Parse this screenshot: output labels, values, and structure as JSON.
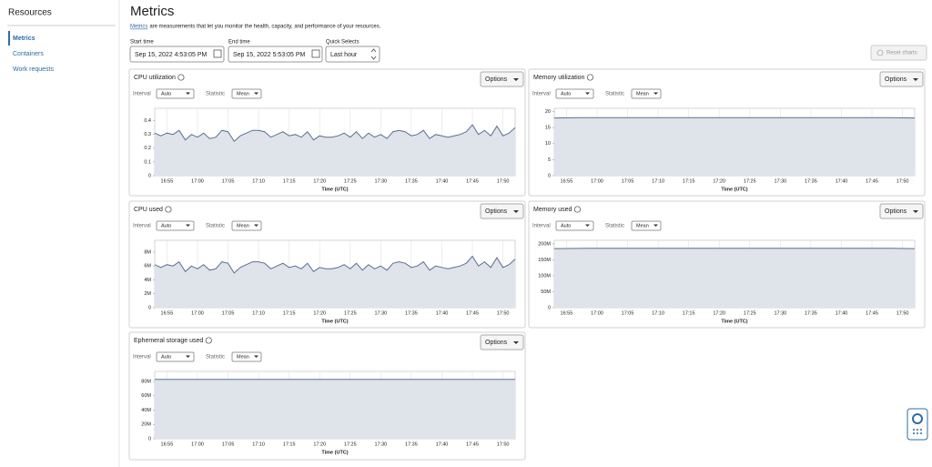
{
  "sidebar": {
    "title": "Resources",
    "items": [
      "Metrics",
      "Containers",
      "Work requests"
    ]
  },
  "header": {
    "title": "Metrics",
    "description_link": "Metrics",
    "description": "are measurements that let you monitor the health, capacity, and performance of your resources."
  },
  "filters": {
    "start_label": "Start time",
    "start_value": "Sep 15, 2022 4:53:05 PM",
    "end_label": "End time",
    "end_value": "Sep 15, 2022 5:53:05 PM",
    "quick_label": "Quick Selects",
    "quick_value": "Last hour",
    "reset": "Reset charts"
  },
  "panel_controls": {
    "interval_label": "Interval",
    "statistic_label": "Statistic",
    "options": "Options"
  },
  "chart_data": [
    {
      "type": "line",
      "title": "CPU utilization",
      "interval": "Auto",
      "statistic": "Mean",
      "x_label": "Time (UTC)",
      "color": "#5b6f93",
      "fill_color": "#dfe3ea",
      "xgrid": true,
      "x": [
        "16:53",
        "16:54",
        "16:55",
        "16:56",
        "16:57",
        "16:58",
        "16:59",
        "17:00",
        "17:01",
        "17:02",
        "17:03",
        "17:04",
        "17:05",
        "17:06",
        "17:07",
        "17:08",
        "17:09",
        "17:10",
        "17:11",
        "17:12",
        "17:13",
        "17:14",
        "17:15",
        "17:16",
        "17:17",
        "17:18",
        "17:19",
        "17:20",
        "17:21",
        "17:22",
        "17:23",
        "17:24",
        "17:25",
        "17:26",
        "17:27",
        "17:28",
        "17:29",
        "17:30",
        "17:31",
        "17:32",
        "17:33",
        "17:34",
        "17:35",
        "17:36",
        "17:37",
        "17:38",
        "17:39",
        "17:40",
        "17:41",
        "17:42",
        "17:43",
        "17:44",
        "17:45",
        "17:46",
        "17:47",
        "17:48",
        "17:49",
        "17:50",
        "17:51",
        "17:52"
      ],
      "values": [
        0.31,
        0.29,
        0.31,
        0.3,
        0.33,
        0.26,
        0.3,
        0.28,
        0.31,
        0.27,
        0.28,
        0.33,
        0.32,
        0.25,
        0.29,
        0.31,
        0.33,
        0.33,
        0.32,
        0.28,
        0.3,
        0.32,
        0.29,
        0.3,
        0.28,
        0.32,
        0.26,
        0.29,
        0.28,
        0.28,
        0.29,
        0.31,
        0.28,
        0.32,
        0.27,
        0.31,
        0.28,
        0.3,
        0.27,
        0.32,
        0.33,
        0.32,
        0.29,
        0.3,
        0.33,
        0.27,
        0.3,
        0.29,
        0.28,
        0.29,
        0.3,
        0.32,
        0.37,
        0.3,
        0.33,
        0.29,
        0.36,
        0.29,
        0.31,
        0.35
      ],
      "xlim": [
        "16:53",
        "17:52"
      ],
      "xticks": [
        "16:55",
        "17:00",
        "17:05",
        "17:10",
        "17:15",
        "17:20",
        "17:25",
        "17:30",
        "17:35",
        "17:40",
        "17:45",
        "17:50"
      ],
      "ylim": [
        0,
        0.49
      ],
      "yticks": [
        0,
        0.1,
        0.2,
        0.3,
        0.4
      ]
    },
    {
      "type": "line",
      "title": "Memory utilization",
      "interval": "Auto",
      "statistic": "Mean",
      "x_label": "Time (UTC)",
      "color": "#5b6f93",
      "fill_color": "#dfe3ea",
      "xgrid": true,
      "x": [
        "16:53",
        "16:58",
        "17:03",
        "17:08",
        "17:13",
        "17:18",
        "17:23",
        "17:28",
        "17:33",
        "17:38",
        "17:43",
        "17:48",
        "17:52"
      ],
      "values": [
        18,
        18.1,
        18.1,
        18.1,
        18.1,
        18.1,
        18.1,
        18.1,
        18.1,
        18.1,
        18.1,
        18.1,
        18
      ],
      "xlim": [
        "16:53",
        "17:52"
      ],
      "xticks": [
        "16:55",
        "17:00",
        "17:05",
        "17:10",
        "17:15",
        "17:20",
        "17:25",
        "17:30",
        "17:35",
        "17:40",
        "17:45",
        "17:50"
      ],
      "ylim": [
        0,
        21
      ],
      "yticks": [
        0,
        5,
        10,
        15,
        20
      ]
    },
    {
      "type": "line",
      "title": "CPU used",
      "interval": "Auto",
      "statistic": "Mean",
      "x_label": "Time (UTC)",
      "color": "#5b6f93",
      "fill_color": "#dfe3ea",
      "xgrid": true,
      "x": [
        "16:53",
        "16:54",
        "16:55",
        "16:56",
        "16:57",
        "16:58",
        "16:59",
        "17:00",
        "17:01",
        "17:02",
        "17:03",
        "17:04",
        "17:05",
        "17:06",
        "17:07",
        "17:08",
        "17:09",
        "17:10",
        "17:11",
        "17:12",
        "17:13",
        "17:14",
        "17:15",
        "17:16",
        "17:17",
        "17:18",
        "17:19",
        "17:20",
        "17:21",
        "17:22",
        "17:23",
        "17:24",
        "17:25",
        "17:26",
        "17:27",
        "17:28",
        "17:29",
        "17:30",
        "17:31",
        "17:32",
        "17:33",
        "17:34",
        "17:35",
        "17:36",
        "17:37",
        "17:38",
        "17:39",
        "17:40",
        "17:41",
        "17:42",
        "17:43",
        "17:44",
        "17:45",
        "17:46",
        "17:47",
        "17:48",
        "17:49",
        "17:50",
        "17:51",
        "17:52"
      ],
      "values": [
        6200000,
        5800000,
        6200000,
        6000000,
        6600000,
        5200000,
        6000000,
        5600000,
        6200000,
        5400000,
        5600000,
        6600000,
        6400000,
        5000000,
        5800000,
        6200000,
        6600000,
        6600000,
        6400000,
        5600000,
        6000000,
        6400000,
        5800000,
        6000000,
        5600000,
        6400000,
        5200000,
        5800000,
        5600000,
        5600000,
        5800000,
        6200000,
        5600000,
        6400000,
        5400000,
        6200000,
        5600000,
        6000000,
        5400000,
        6400000,
        6600000,
        6400000,
        5800000,
        6000000,
        6600000,
        5400000,
        6000000,
        5800000,
        5600000,
        5800000,
        6000000,
        6400000,
        7400000,
        6000000,
        6600000,
        5800000,
        7200000,
        5800000,
        6200000,
        7000000
      ],
      "xlim": [
        "16:53",
        "17:52"
      ],
      "xticks": [
        "16:55",
        "17:00",
        "17:05",
        "17:10",
        "17:15",
        "17:20",
        "17:25",
        "17:30",
        "17:35",
        "17:40",
        "17:45",
        "17:50"
      ],
      "ylim": [
        0,
        9700000
      ],
      "yticks": [
        0,
        {
          "value": 2000000,
          "label": "2M"
        },
        {
          "value": 4000000,
          "label": "4M"
        },
        {
          "value": 6000000,
          "label": "6M"
        },
        {
          "value": 8000000,
          "label": "8M"
        }
      ]
    },
    {
      "type": "line",
      "title": "Memory used",
      "interval": "Auto",
      "statistic": "Mean",
      "x_label": "Time (UTC)",
      "color": "#5b6f93",
      "fill_color": "#dfe3ea",
      "xgrid": true,
      "x": [
        "16:53",
        "16:58",
        "17:03",
        "17:08",
        "17:13",
        "17:18",
        "17:23",
        "17:28",
        "17:33",
        "17:38",
        "17:43",
        "17:48",
        "17:52"
      ],
      "values": [
        185000000,
        186000000,
        186000000,
        186000000,
        186000000,
        186000000,
        186000000,
        186000000,
        186000000,
        186000000,
        186000000,
        186000000,
        185000000
      ],
      "xlim": [
        "16:53",
        "17:52"
      ],
      "xticks": [
        "16:55",
        "17:00",
        "17:05",
        "17:10",
        "17:15",
        "17:20",
        "17:25",
        "17:30",
        "17:35",
        "17:40",
        "17:45",
        "17:50"
      ],
      "ylim": [
        0,
        211000000
      ],
      "yticks": [
        0,
        {
          "value": 50000000,
          "label": "50M"
        },
        {
          "value": 100000000,
          "label": "100M"
        },
        {
          "value": 150000000,
          "label": "150M"
        },
        {
          "value": 200000000,
          "label": "200M"
        }
      ]
    },
    {
      "type": "line",
      "title": "Ephemeral storage used",
      "interval": "Auto",
      "statistic": "Mean",
      "x_label": "Time (UTC)",
      "color": "#5b6f93",
      "fill_color": "#dfe3ea",
      "xgrid": true,
      "x": [
        "16:53",
        "16:58",
        "17:03",
        "17:08",
        "17:13",
        "17:18",
        "17:23",
        "17:28",
        "17:33",
        "17:38",
        "17:43",
        "17:48",
        "17:52"
      ],
      "values": [
        83000000,
        83000000,
        83000000,
        83000000,
        83000000,
        83000000,
        83000000,
        83000000,
        83000000,
        83000000,
        83000000,
        83000000,
        83000000
      ],
      "xlim": [
        "16:53",
        "17:52"
      ],
      "xticks": [
        "16:55",
        "17:00",
        "17:05",
        "17:10",
        "17:15",
        "17:20",
        "17:25",
        "17:30",
        "17:35",
        "17:40",
        "17:45",
        "17:50"
      ],
      "ylim": [
        0,
        94000000
      ],
      "yticks": [
        0,
        {
          "value": 20000000,
          "label": "20M"
        },
        {
          "value": 40000000,
          "label": "40M"
        },
        {
          "value": 60000000,
          "label": "60M"
        },
        {
          "value": 80000000,
          "label": "80M"
        }
      ]
    }
  ]
}
